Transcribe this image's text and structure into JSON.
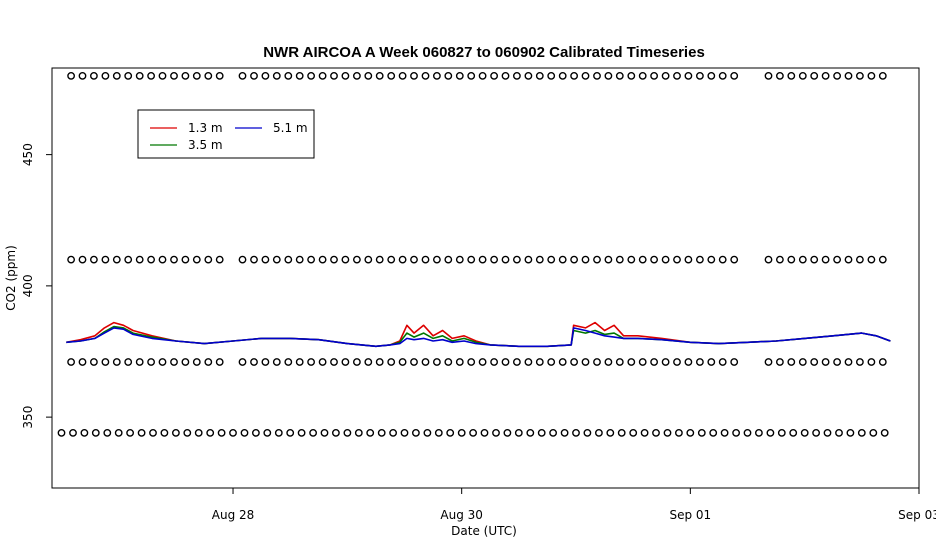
{
  "chart_data": {
    "type": "line",
    "title": "NWR AIRCOA A  Week 060827 to 060902  Calibrated Timeseries",
    "xlabel": "Date (UTC)",
    "ylabel": "CO2 (ppm)",
    "x_is_date": true,
    "xlim": [
      "2006-08-26T10:00",
      "2006-09-03T00:00"
    ],
    "ylim": [
      323,
      483
    ],
    "x_ticks": [
      {
        "x": "2006-08-28T00:00",
        "label": "Aug 28"
      },
      {
        "x": "2006-08-30T00:00",
        "label": "Aug 30"
      },
      {
        "x": "2006-09-01T00:00",
        "label": "Sep 01"
      },
      {
        "x": "2006-09-03T00:00",
        "label": "Sep 03"
      }
    ],
    "y_ticks": [
      350,
      400,
      450
    ],
    "grid": false,
    "legend": {
      "position": "top-left",
      "entries": [
        "1.3 m",
        "3.5 m",
        "5.1 m"
      ]
    },
    "series": [
      {
        "name": "1.3 m",
        "color": "#dd0000",
        "points": [
          [
            "2006-08-26T13:00",
            378.5
          ],
          [
            "2006-08-26T16:00",
            379.5
          ],
          [
            "2006-08-26T19:00",
            381
          ],
          [
            "2006-08-26T21:00",
            384
          ],
          [
            "2006-08-26T23:00",
            386
          ],
          [
            "2006-08-27T01:00",
            385
          ],
          [
            "2006-08-27T03:00",
            383
          ],
          [
            "2006-08-27T07:00",
            381
          ],
          [
            "2006-08-27T12:00",
            379
          ],
          [
            "2006-08-27T18:00",
            378
          ],
          [
            "2006-08-28T00:00",
            379
          ],
          [
            "2006-08-28T06:00",
            380
          ],
          [
            "2006-08-28T12:00",
            380
          ],
          [
            "2006-08-28T18:00",
            379.5
          ],
          [
            "2006-08-29T00:00",
            378
          ],
          [
            "2006-08-29T06:00",
            377
          ],
          [
            "2006-08-29T09:00",
            377.5
          ],
          [
            "2006-08-29T11:00",
            379
          ],
          [
            "2006-08-29T12:30",
            385
          ],
          [
            "2006-08-29T14:00",
            382
          ],
          [
            "2006-08-29T16:00",
            385
          ],
          [
            "2006-08-29T18:00",
            381
          ],
          [
            "2006-08-29T20:00",
            383
          ],
          [
            "2006-08-29T22:00",
            380
          ],
          [
            "2006-08-30T00:30",
            381
          ],
          [
            "2006-08-30T03:00",
            379
          ],
          [
            "2006-08-30T06:00",
            377.5
          ],
          [
            "2006-08-30T12:00",
            377
          ],
          [
            "2006-08-30T18:00",
            377
          ],
          [
            "2006-08-30T23:00",
            377.5
          ],
          [
            "2006-08-30T23:30",
            385
          ],
          [
            "2006-08-31T02:00",
            384
          ],
          [
            "2006-08-31T04:00",
            386
          ],
          [
            "2006-08-31T06:00",
            383
          ],
          [
            "2006-08-31T08:00",
            385
          ],
          [
            "2006-08-31T10:00",
            381
          ],
          [
            "2006-08-31T13:00",
            381
          ],
          [
            "2006-08-31T18:00",
            380
          ],
          [
            "2006-09-01T00:00",
            378.5
          ],
          [
            "2006-09-01T06:00",
            378
          ],
          [
            "2006-09-01T12:00",
            378.5
          ],
          [
            "2006-09-01T18:00",
            379
          ],
          [
            "2006-09-02T00:00",
            380
          ],
          [
            "2006-09-02T06:00",
            381
          ],
          [
            "2006-09-02T12:00",
            382
          ],
          [
            "2006-09-02T15:00",
            381
          ],
          [
            "2006-09-02T18:00",
            379
          ]
        ]
      },
      {
        "name": "3.5 m",
        "color": "#007700",
        "points": [
          [
            "2006-08-26T13:00",
            378.5
          ],
          [
            "2006-08-26T16:00",
            379
          ],
          [
            "2006-08-26T19:00",
            380
          ],
          [
            "2006-08-26T21:00",
            382.5
          ],
          [
            "2006-08-26T23:00",
            384.5
          ],
          [
            "2006-08-27T01:00",
            384
          ],
          [
            "2006-08-27T03:00",
            382
          ],
          [
            "2006-08-27T07:00",
            380.5
          ],
          [
            "2006-08-27T12:00",
            379
          ],
          [
            "2006-08-27T18:00",
            378
          ],
          [
            "2006-08-28T00:00",
            379
          ],
          [
            "2006-08-28T06:00",
            380
          ],
          [
            "2006-08-28T12:00",
            380
          ],
          [
            "2006-08-28T18:00",
            379.5
          ],
          [
            "2006-08-29T00:00",
            378
          ],
          [
            "2006-08-29T06:00",
            377
          ],
          [
            "2006-08-29T09:00",
            377.5
          ],
          [
            "2006-08-29T11:00",
            378.5
          ],
          [
            "2006-08-29T12:30",
            382
          ],
          [
            "2006-08-29T14:00",
            380.5
          ],
          [
            "2006-08-29T16:00",
            382
          ],
          [
            "2006-08-29T18:00",
            380
          ],
          [
            "2006-08-29T20:00",
            381
          ],
          [
            "2006-08-29T22:00",
            379
          ],
          [
            "2006-08-30T00:30",
            380
          ],
          [
            "2006-08-30T03:00",
            378.5
          ],
          [
            "2006-08-30T06:00",
            377.5
          ],
          [
            "2006-08-30T12:00",
            377
          ],
          [
            "2006-08-30T18:00",
            377
          ],
          [
            "2006-08-30T23:00",
            377.5
          ],
          [
            "2006-08-30T23:30",
            383
          ],
          [
            "2006-08-31T02:00",
            382
          ],
          [
            "2006-08-31T04:00",
            383
          ],
          [
            "2006-08-31T06:00",
            381.5
          ],
          [
            "2006-08-31T08:00",
            382
          ],
          [
            "2006-08-31T10:00",
            380
          ],
          [
            "2006-08-31T13:00",
            380
          ],
          [
            "2006-08-31T18:00",
            379.5
          ],
          [
            "2006-09-01T00:00",
            378.5
          ],
          [
            "2006-09-01T06:00",
            378
          ],
          [
            "2006-09-01T12:00",
            378.5
          ],
          [
            "2006-09-01T18:00",
            379
          ],
          [
            "2006-09-02T00:00",
            380
          ],
          [
            "2006-09-02T06:00",
            381
          ],
          [
            "2006-09-02T12:00",
            382
          ],
          [
            "2006-09-02T15:00",
            381
          ],
          [
            "2006-09-02T18:00",
            379
          ]
        ]
      },
      {
        "name": "5.1 m",
        "color": "#0000cc",
        "points": [
          [
            "2006-08-26T13:00",
            378.5
          ],
          [
            "2006-08-26T16:00",
            379
          ],
          [
            "2006-08-26T19:00",
            380
          ],
          [
            "2006-08-26T21:00",
            382
          ],
          [
            "2006-08-26T23:00",
            384
          ],
          [
            "2006-08-27T01:00",
            383.5
          ],
          [
            "2006-08-27T03:00",
            381.5
          ],
          [
            "2006-08-27T07:00",
            380
          ],
          [
            "2006-08-27T12:00",
            379
          ],
          [
            "2006-08-27T18:00",
            378
          ],
          [
            "2006-08-28T00:00",
            379
          ],
          [
            "2006-08-28T06:00",
            380
          ],
          [
            "2006-08-28T12:00",
            380
          ],
          [
            "2006-08-28T18:00",
            379.5
          ],
          [
            "2006-08-29T00:00",
            378
          ],
          [
            "2006-08-29T06:00",
            377
          ],
          [
            "2006-08-29T09:00",
            377.5
          ],
          [
            "2006-08-29T11:00",
            378
          ],
          [
            "2006-08-29T12:30",
            380
          ],
          [
            "2006-08-29T14:00",
            379.5
          ],
          [
            "2006-08-29T16:00",
            380
          ],
          [
            "2006-08-29T18:00",
            379
          ],
          [
            "2006-08-29T20:00",
            379.5
          ],
          [
            "2006-08-29T22:00",
            378.5
          ],
          [
            "2006-08-30T00:30",
            379
          ],
          [
            "2006-08-30T03:00",
            378
          ],
          [
            "2006-08-30T06:00",
            377.5
          ],
          [
            "2006-08-30T12:00",
            377
          ],
          [
            "2006-08-30T18:00",
            377
          ],
          [
            "2006-08-30T23:00",
            377.5
          ],
          [
            "2006-08-30T23:30",
            384
          ],
          [
            "2006-08-31T02:00",
            383
          ],
          [
            "2006-08-31T04:00",
            382
          ],
          [
            "2006-08-31T06:00",
            381
          ],
          [
            "2006-08-31T08:00",
            380.5
          ],
          [
            "2006-08-31T10:00",
            380
          ],
          [
            "2006-08-31T13:00",
            380
          ],
          [
            "2006-08-31T18:00",
            379.5
          ],
          [
            "2006-09-01T00:00",
            378.5
          ],
          [
            "2006-09-01T06:00",
            378
          ],
          [
            "2006-09-01T12:00",
            378.5
          ],
          [
            "2006-09-01T18:00",
            379
          ],
          [
            "2006-09-02T00:00",
            380
          ],
          [
            "2006-09-02T06:00",
            381
          ],
          [
            "2006-09-02T12:00",
            382
          ],
          [
            "2006-09-02T15:00",
            381
          ],
          [
            "2006-09-02T18:00",
            379
          ]
        ]
      }
    ],
    "reference_point_rows": [
      {
        "y": 480,
        "color": "#000000",
        "x_range": [
          "2006-08-26T14:00",
          "2006-09-02T18:00"
        ],
        "gaps": [
          [
            "2006-08-27T22:30",
            "2006-08-28T01:00"
          ],
          [
            "2006-09-01T11:30",
            "2006-09-01T14:30"
          ]
        ]
      },
      {
        "y": 410,
        "color": "#000000",
        "x_range": [
          "2006-08-26T14:00",
          "2006-09-02T18:00"
        ],
        "gaps": [
          [
            "2006-08-27T22:30",
            "2006-08-28T01:00"
          ],
          [
            "2006-09-01T11:30",
            "2006-09-01T14:30"
          ]
        ]
      },
      {
        "y": 371,
        "color": "#000000",
        "x_range": [
          "2006-08-26T14:00",
          "2006-09-02T18:00"
        ],
        "gaps": [
          [
            "2006-08-27T22:30",
            "2006-08-28T01:00"
          ],
          [
            "2006-09-01T11:30",
            "2006-09-01T14:30"
          ]
        ]
      },
      {
        "y": 344,
        "color": "#000000",
        "x_range": [
          "2006-08-26T12:00",
          "2006-09-02T18:00"
        ],
        "gaps": []
      }
    ]
  }
}
